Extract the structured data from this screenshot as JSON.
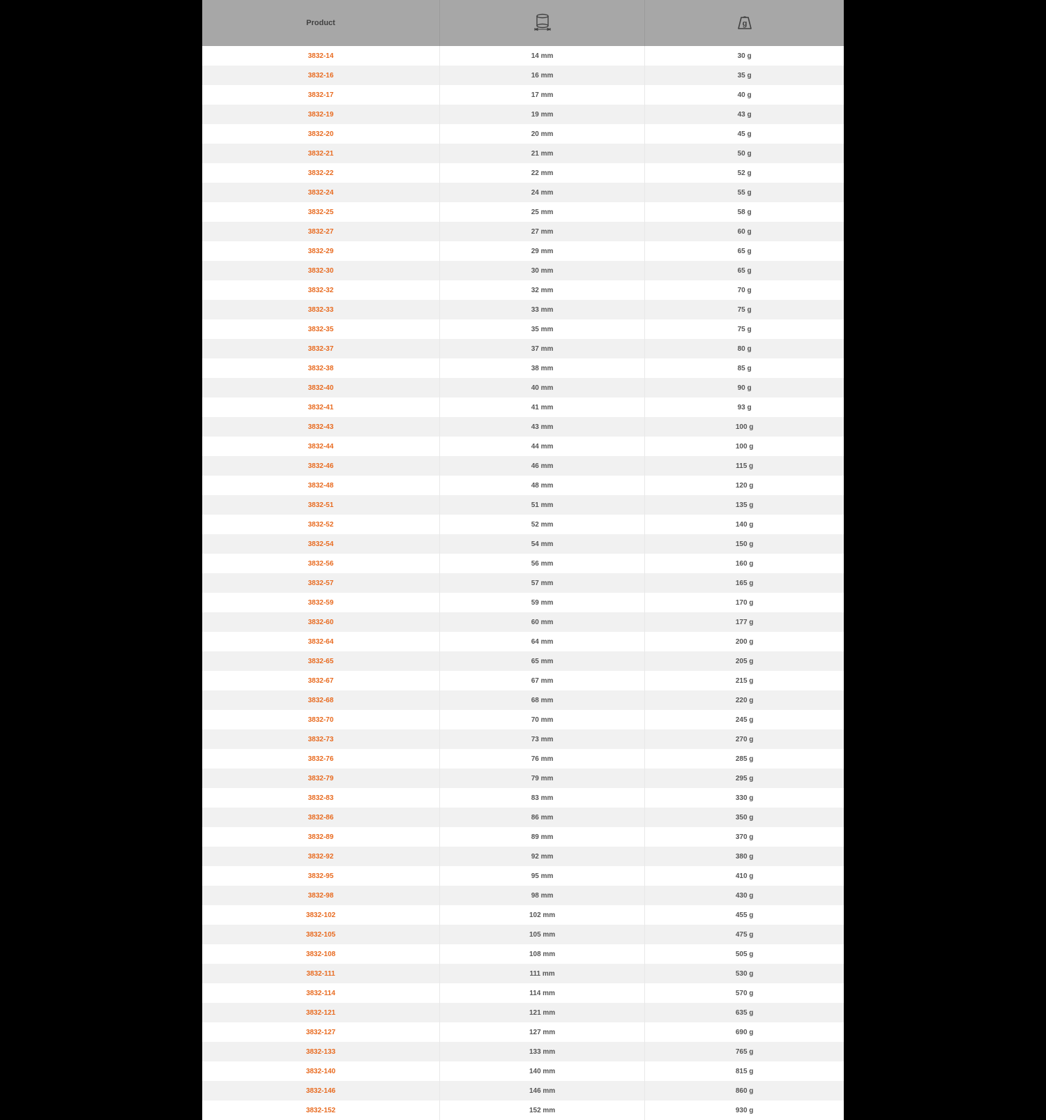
{
  "table": {
    "columns": {
      "product_label": "Product",
      "diameter_icon": "diameter-icon",
      "weight_icon": "weight-icon"
    },
    "diameter_unit": "mm",
    "weight_unit": "g",
    "link_color": "#e86a1f",
    "header_bg": "#a7a7a7",
    "row_bg_odd": "#ffffff",
    "row_bg_even": "#f1f1f1",
    "text_color": "#555555",
    "rows": [
      {
        "product": "3832-14",
        "diameter": "14 mm",
        "weight": "30 g"
      },
      {
        "product": "3832-16",
        "diameter": "16 mm",
        "weight": "35 g"
      },
      {
        "product": "3832-17",
        "diameter": "17 mm",
        "weight": "40 g"
      },
      {
        "product": "3832-19",
        "diameter": "19 mm",
        "weight": "43 g"
      },
      {
        "product": "3832-20",
        "diameter": "20 mm",
        "weight": "45 g"
      },
      {
        "product": "3832-21",
        "diameter": "21 mm",
        "weight": "50 g"
      },
      {
        "product": "3832-22",
        "diameter": "22 mm",
        "weight": "52 g"
      },
      {
        "product": "3832-24",
        "diameter": "24 mm",
        "weight": "55 g"
      },
      {
        "product": "3832-25",
        "diameter": "25 mm",
        "weight": "58 g"
      },
      {
        "product": "3832-27",
        "diameter": "27 mm",
        "weight": "60 g"
      },
      {
        "product": "3832-29",
        "diameter": "29 mm",
        "weight": "65 g"
      },
      {
        "product": "3832-30",
        "diameter": "30 mm",
        "weight": "65 g"
      },
      {
        "product": "3832-32",
        "diameter": "32 mm",
        "weight": "70 g"
      },
      {
        "product": "3832-33",
        "diameter": "33 mm",
        "weight": "75 g"
      },
      {
        "product": "3832-35",
        "diameter": "35 mm",
        "weight": "75 g"
      },
      {
        "product": "3832-37",
        "diameter": "37 mm",
        "weight": "80 g"
      },
      {
        "product": "3832-38",
        "diameter": "38 mm",
        "weight": "85 g"
      },
      {
        "product": "3832-40",
        "diameter": "40 mm",
        "weight": "90 g"
      },
      {
        "product": "3832-41",
        "diameter": "41 mm",
        "weight": "93 g"
      },
      {
        "product": "3832-43",
        "diameter": "43 mm",
        "weight": "100 g"
      },
      {
        "product": "3832-44",
        "diameter": "44 mm",
        "weight": "100 g"
      },
      {
        "product": "3832-46",
        "diameter": "46 mm",
        "weight": "115 g"
      },
      {
        "product": "3832-48",
        "diameter": "48 mm",
        "weight": "120 g"
      },
      {
        "product": "3832-51",
        "diameter": "51 mm",
        "weight": "135 g"
      },
      {
        "product": "3832-52",
        "diameter": "52 mm",
        "weight": "140 g"
      },
      {
        "product": "3832-54",
        "diameter": "54 mm",
        "weight": "150 g"
      },
      {
        "product": "3832-56",
        "diameter": "56 mm",
        "weight": "160 g"
      },
      {
        "product": "3832-57",
        "diameter": "57 mm",
        "weight": "165 g"
      },
      {
        "product": "3832-59",
        "diameter": "59 mm",
        "weight": "170 g"
      },
      {
        "product": "3832-60",
        "diameter": "60 mm",
        "weight": "177 g"
      },
      {
        "product": "3832-64",
        "diameter": "64 mm",
        "weight": "200 g"
      },
      {
        "product": "3832-65",
        "diameter": "65 mm",
        "weight": "205 g"
      },
      {
        "product": "3832-67",
        "diameter": "67 mm",
        "weight": "215 g"
      },
      {
        "product": "3832-68",
        "diameter": "68 mm",
        "weight": "220 g"
      },
      {
        "product": "3832-70",
        "diameter": "70 mm",
        "weight": "245 g"
      },
      {
        "product": "3832-73",
        "diameter": "73 mm",
        "weight": "270 g"
      },
      {
        "product": "3832-76",
        "diameter": "76 mm",
        "weight": "285 g"
      },
      {
        "product": "3832-79",
        "diameter": "79 mm",
        "weight": "295 g"
      },
      {
        "product": "3832-83",
        "diameter": "83 mm",
        "weight": "330 g"
      },
      {
        "product": "3832-86",
        "diameter": "86 mm",
        "weight": "350 g"
      },
      {
        "product": "3832-89",
        "diameter": "89 mm",
        "weight": "370 g"
      },
      {
        "product": "3832-92",
        "diameter": "92 mm",
        "weight": "380 g"
      },
      {
        "product": "3832-95",
        "diameter": "95 mm",
        "weight": "410 g"
      },
      {
        "product": "3832-98",
        "diameter": "98 mm",
        "weight": "430 g"
      },
      {
        "product": "3832-102",
        "diameter": "102 mm",
        "weight": "455 g"
      },
      {
        "product": "3832-105",
        "diameter": "105 mm",
        "weight": "475 g"
      },
      {
        "product": "3832-108",
        "diameter": "108 mm",
        "weight": "505 g"
      },
      {
        "product": "3832-111",
        "diameter": "111 mm",
        "weight": "530 g"
      },
      {
        "product": "3832-114",
        "diameter": "114 mm",
        "weight": "570 g"
      },
      {
        "product": "3832-121",
        "diameter": "121 mm",
        "weight": "635 g"
      },
      {
        "product": "3832-127",
        "diameter": "127 mm",
        "weight": "690 g"
      },
      {
        "product": "3832-133",
        "diameter": "133 mm",
        "weight": "765 g"
      },
      {
        "product": "3832-140",
        "diameter": "140 mm",
        "weight": "815 g"
      },
      {
        "product": "3832-146",
        "diameter": "146 mm",
        "weight": "860 g"
      },
      {
        "product": "3832-152",
        "diameter": "152 mm",
        "weight": "930 g"
      }
    ]
  }
}
